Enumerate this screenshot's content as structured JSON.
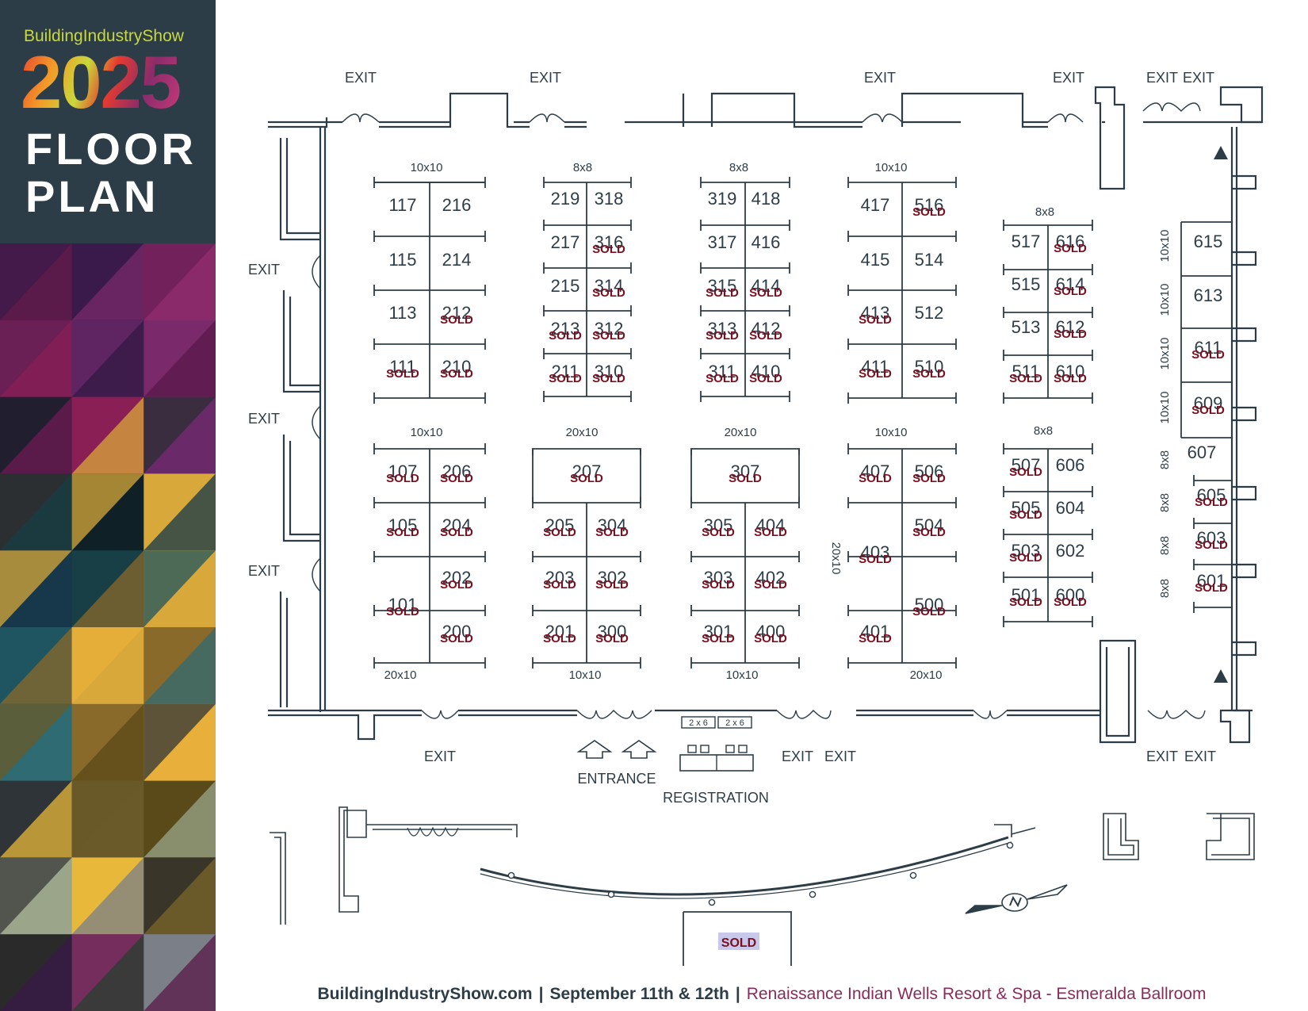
{
  "brand": {
    "name": "BuildingIndustryShow",
    "year": "2025",
    "title_line1": "FLOOR",
    "title_line2": "PLAN"
  },
  "colors": {
    "navy": "#2c3d48",
    "sold": "#7a1020",
    "lime": "#c8d83a",
    "magenta": "#8b2b5a"
  },
  "mosaic_palette": [
    [
      "#5a1a4a",
      "#3a1a4a",
      "#8a2a6a"
    ],
    [
      "#6a1f55",
      "#3d1b4b",
      "#7a2a6a"
    ],
    [
      "#5a1a4a",
      "#8a1f55",
      "#6a2a6a"
    ],
    [
      "#2b2f31",
      "#0f2127",
      "#d8a83a"
    ],
    [
      "#16384a",
      "#173f45",
      "#d8a83a"
    ],
    [
      "#1e5560",
      "#d8a83a",
      "#8a6a2a"
    ],
    [
      "#2f6b72",
      "#8a6a2a",
      "#e8b03a"
    ],
    [
      "#2f3438",
      "#6a5a2a",
      "#5a4a1a"
    ],
    [
      "#9aa58a",
      "#e8b83a",
      "#6a5a2a"
    ],
    [
      "#2a2a2a",
      "#3a3a3a",
      "#7a7f88"
    ]
  ],
  "footer": {
    "website": "BuildingIndustryShow.com",
    "dates": "September 11th & 12th",
    "venue": "Renaissance Indian Wells Resort & Spa - Esmeralda Ballroom",
    "separator": "|"
  },
  "labels": {
    "exit": "EXIT",
    "entrance": "ENTRANCE",
    "registration": "REGISTRATION",
    "sold": "SOLD",
    "reg_table": "2 x 6"
  },
  "size_labels": [
    "10x10",
    "8x8",
    "8x8",
    "10x10",
    "8x8",
    "10x10",
    "20x10",
    "20x10",
    "10x10",
    "8x8",
    "20x10",
    "10x10",
    "10x10",
    "20x10",
    "10x10",
    "10x10",
    "10x10",
    "10x10",
    "8x8",
    "8x8",
    "8x8",
    "8x8",
    "20x10"
  ],
  "booths": [
    {
      "id": "117",
      "sold": false
    },
    {
      "id": "216",
      "sold": false
    },
    {
      "id": "115",
      "sold": false
    },
    {
      "id": "214",
      "sold": false
    },
    {
      "id": "113",
      "sold": false
    },
    {
      "id": "212",
      "sold": true
    },
    {
      "id": "111",
      "sold": true
    },
    {
      "id": "210",
      "sold": true
    },
    {
      "id": "219",
      "sold": false
    },
    {
      "id": "318",
      "sold": false
    },
    {
      "id": "217",
      "sold": false
    },
    {
      "id": "316",
      "sold": true
    },
    {
      "id": "215",
      "sold": false
    },
    {
      "id": "314",
      "sold": true
    },
    {
      "id": "213",
      "sold": true
    },
    {
      "id": "312",
      "sold": true
    },
    {
      "id": "211",
      "sold": true
    },
    {
      "id": "310",
      "sold": true
    },
    {
      "id": "319",
      "sold": false
    },
    {
      "id": "418",
      "sold": false
    },
    {
      "id": "317",
      "sold": false
    },
    {
      "id": "416",
      "sold": false
    },
    {
      "id": "315",
      "sold": true
    },
    {
      "id": "414",
      "sold": true
    },
    {
      "id": "313",
      "sold": true
    },
    {
      "id": "412",
      "sold": true
    },
    {
      "id": "311",
      "sold": true
    },
    {
      "id": "410",
      "sold": true
    },
    {
      "id": "417",
      "sold": false
    },
    {
      "id": "516",
      "sold": true
    },
    {
      "id": "415",
      "sold": false
    },
    {
      "id": "514",
      "sold": false
    },
    {
      "id": "413",
      "sold": true
    },
    {
      "id": "512",
      "sold": false
    },
    {
      "id": "411",
      "sold": true
    },
    {
      "id": "510",
      "sold": true
    },
    {
      "id": "517",
      "sold": false
    },
    {
      "id": "616",
      "sold": true
    },
    {
      "id": "515",
      "sold": false
    },
    {
      "id": "614",
      "sold": true
    },
    {
      "id": "513",
      "sold": false
    },
    {
      "id": "612",
      "sold": true
    },
    {
      "id": "511",
      "sold": true
    },
    {
      "id": "610",
      "sold": true
    },
    {
      "id": "615",
      "sold": false
    },
    {
      "id": "613",
      "sold": false
    },
    {
      "id": "611",
      "sold": true
    },
    {
      "id": "609",
      "sold": true
    },
    {
      "id": "607",
      "sold": false
    },
    {
      "id": "605",
      "sold": true
    },
    {
      "id": "603",
      "sold": true
    },
    {
      "id": "601",
      "sold": true
    },
    {
      "id": "107",
      "sold": true
    },
    {
      "id": "206",
      "sold": true
    },
    {
      "id": "105",
      "sold": true
    },
    {
      "id": "204",
      "sold": true
    },
    {
      "id": "202",
      "sold": true
    },
    {
      "id": "101",
      "sold": true
    },
    {
      "id": "200",
      "sold": true
    },
    {
      "id": "207",
      "sold": true
    },
    {
      "id": "205",
      "sold": true
    },
    {
      "id": "304",
      "sold": true
    },
    {
      "id": "203",
      "sold": true
    },
    {
      "id": "302",
      "sold": true
    },
    {
      "id": "201",
      "sold": true
    },
    {
      "id": "300",
      "sold": true
    },
    {
      "id": "307",
      "sold": true
    },
    {
      "id": "305",
      "sold": true
    },
    {
      "id": "404",
      "sold": true
    },
    {
      "id": "303",
      "sold": true
    },
    {
      "id": "402",
      "sold": true
    },
    {
      "id": "301",
      "sold": true
    },
    {
      "id": "400",
      "sold": true
    },
    {
      "id": "407",
      "sold": true
    },
    {
      "id": "506",
      "sold": true
    },
    {
      "id": "504",
      "sold": true
    },
    {
      "id": "403",
      "sold": true
    },
    {
      "id": "500",
      "sold": true
    },
    {
      "id": "401",
      "sold": true
    },
    {
      "id": "507",
      "sold": true
    },
    {
      "id": "606",
      "sold": false
    },
    {
      "id": "505",
      "sold": true
    },
    {
      "id": "604",
      "sold": false
    },
    {
      "id": "503",
      "sold": true
    },
    {
      "id": "602",
      "sold": false
    },
    {
      "id": "501",
      "sold": true
    },
    {
      "id": "600",
      "sold": true
    }
  ],
  "lobby_booth": {
    "sold": true
  }
}
